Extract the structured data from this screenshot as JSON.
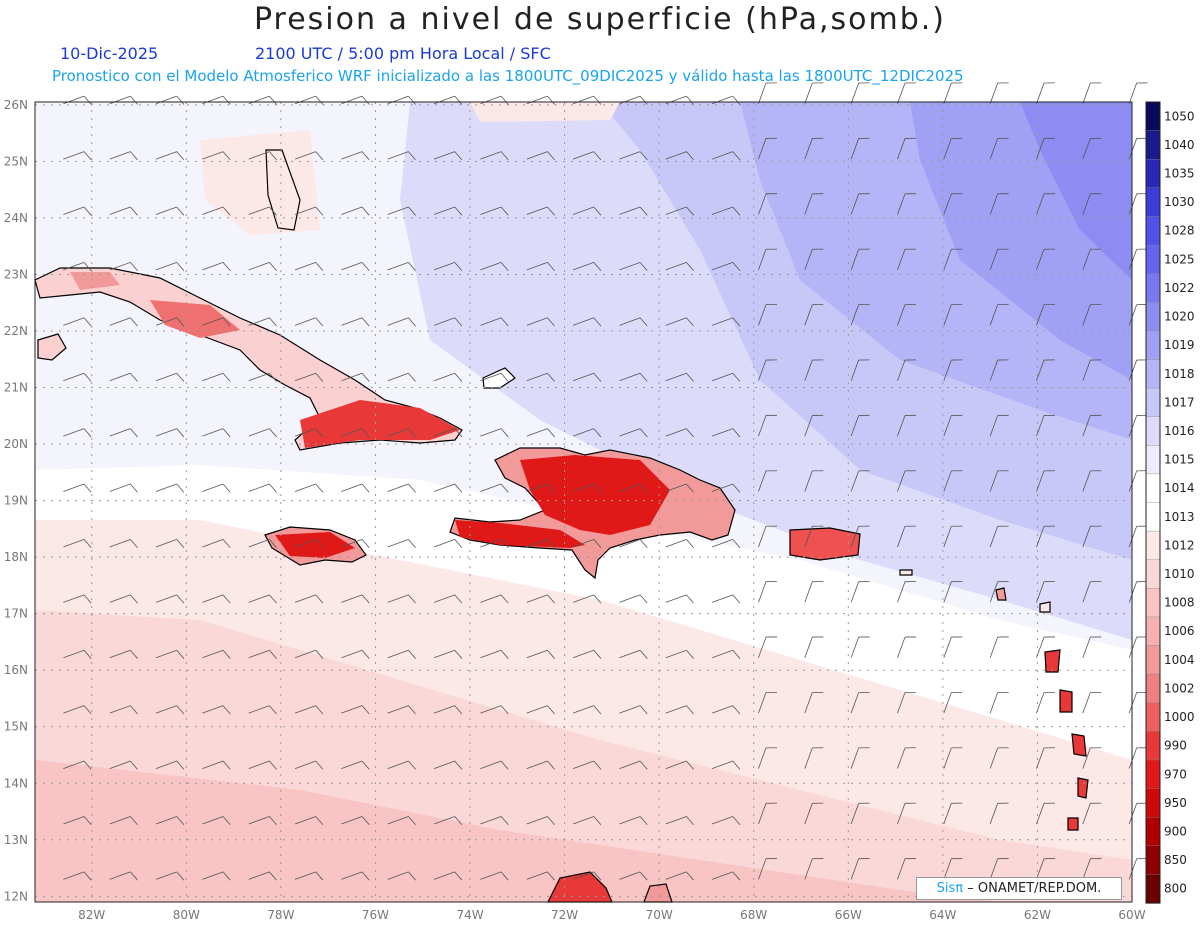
{
  "header": {
    "title": "Presion a nivel de superficie (hPa,somb.)",
    "date": "10-Dic-2025",
    "valid": "2100 UTC / 5:00 pm Hora Local / SFC",
    "subtitle": "Pronostico con el Modelo Atmosferico WRF inicializado a las 1800UTC_09DIC2025 y válido hasta las  1800UTC_12DIC2025"
  },
  "map": {
    "lon_labels": [
      "82W",
      "80W",
      "78W",
      "76W",
      "74W",
      "72W",
      "70W",
      "68W",
      "66W",
      "64W",
      "62W",
      "60W"
    ],
    "lat_labels": [
      "26N",
      "25N",
      "24N",
      "23N",
      "22N",
      "21N",
      "20N",
      "19N",
      "18N",
      "17N",
      "16N",
      "15N",
      "14N",
      "13N",
      "12N"
    ],
    "lon_range": [
      -83.2,
      -60
    ],
    "lat_range": [
      11.9,
      26.05
    ],
    "grid": true,
    "wind_barbs": true
  },
  "colorbar": {
    "labels": [
      "1050",
      "1040",
      "1035",
      "1030",
      "1028",
      "1025",
      "1022",
      "1020",
      "1019",
      "1018",
      "1017",
      "1016",
      "1015",
      "1014",
      "1013",
      "1012",
      "1010",
      "1008",
      "1006",
      "1004",
      "1002",
      "1000",
      "990",
      "970",
      "950",
      "900",
      "850",
      "800"
    ],
    "colors": [
      "#0a0a5c",
      "#1a1a8c",
      "#2828b4",
      "#3c3cd8",
      "#5050ea",
      "#6464ee",
      "#7878f0",
      "#8c8cf2",
      "#a0a0f4",
      "#b4b4f6",
      "#c8c8f8",
      "#dcdcfa",
      "#ececfc",
      "#ffffff",
      "#ffffff",
      "#fde8e8",
      "#fbd8d8",
      "#f8c4c4",
      "#f5b0b0",
      "#f29a9a",
      "#ef8080",
      "#ec6060",
      "#e83838",
      "#e01818",
      "#cc0808",
      "#b00000",
      "#900000",
      "#6a0000"
    ]
  },
  "credit": {
    "brand": "Sisπ",
    "org": "– ONAMET/REP.DOM."
  },
  "colors": {
    "land_high": "#e8202a",
    "water_low": "#a4a4f4",
    "water_high": "#fbe0e0"
  }
}
